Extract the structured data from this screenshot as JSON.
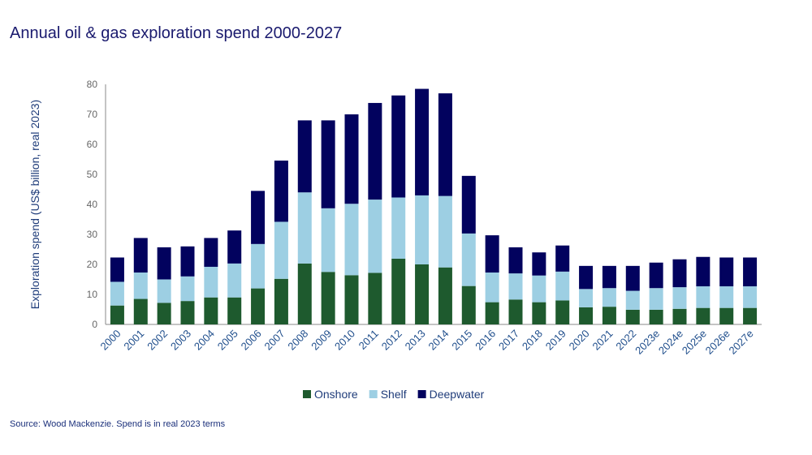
{
  "title": "Annual oil & gas exploration spend 2000-2027",
  "source": "Source: Wood Mackenzie. Spend is in real 2023 terms",
  "chart_data": {
    "type": "bar",
    "stacked": true,
    "title": "Annual oil & gas exploration spend 2000-2027",
    "xlabel": "",
    "ylabel": "Exploration spend (US$ billion, real 2023)",
    "ylim": [
      0,
      80
    ],
    "yticks": [
      0,
      10,
      20,
      30,
      40,
      50,
      60,
      70,
      80
    ],
    "grid": false,
    "legend": "bottom",
    "categories": [
      "2000",
      "2001",
      "2002",
      "2003",
      "2004",
      "2005",
      "2006",
      "2007",
      "2008",
      "2009",
      "2010",
      "2011",
      "2012",
      "2013",
      "2014",
      "2015",
      "2016",
      "2017",
      "2018",
      "2019",
      "2020",
      "2021",
      "2022",
      "2023e",
      "2024e",
      "2025e",
      "2026e",
      "2027e"
    ],
    "series": [
      {
        "name": "Onshore",
        "color": "#1e5a2e",
        "values": [
          6.3,
          8.5,
          7.2,
          7.8,
          9.0,
          9.0,
          12.0,
          15.2,
          20.3,
          17.5,
          16.4,
          17.2,
          21.9,
          20.0,
          19.0,
          12.8,
          7.4,
          8.3,
          7.4,
          8.0,
          5.7,
          5.9,
          4.9,
          4.9,
          5.2,
          5.5,
          5.5,
          5.5
        ]
      },
      {
        "name": "Shelf",
        "color": "#9dcfe3",
        "values": [
          7.9,
          8.8,
          7.8,
          8.2,
          10.2,
          11.3,
          14.8,
          19.0,
          23.7,
          21.2,
          23.8,
          24.4,
          20.4,
          23.0,
          23.8,
          17.5,
          9.9,
          8.7,
          8.9,
          9.6,
          6.1,
          6.2,
          6.3,
          7.2,
          7.2,
          7.2,
          7.2,
          7.2
        ]
      },
      {
        "name": "Deepwater",
        "color": "#02025e",
        "values": [
          8.1,
          11.5,
          10.7,
          10.0,
          9.6,
          11.0,
          17.7,
          20.4,
          24.0,
          29.3,
          29.8,
          32.2,
          34.0,
          35.5,
          34.2,
          19.2,
          12.4,
          8.7,
          7.7,
          8.7,
          7.7,
          7.4,
          8.3,
          8.5,
          9.3,
          9.8,
          9.6,
          9.6
        ]
      }
    ]
  }
}
